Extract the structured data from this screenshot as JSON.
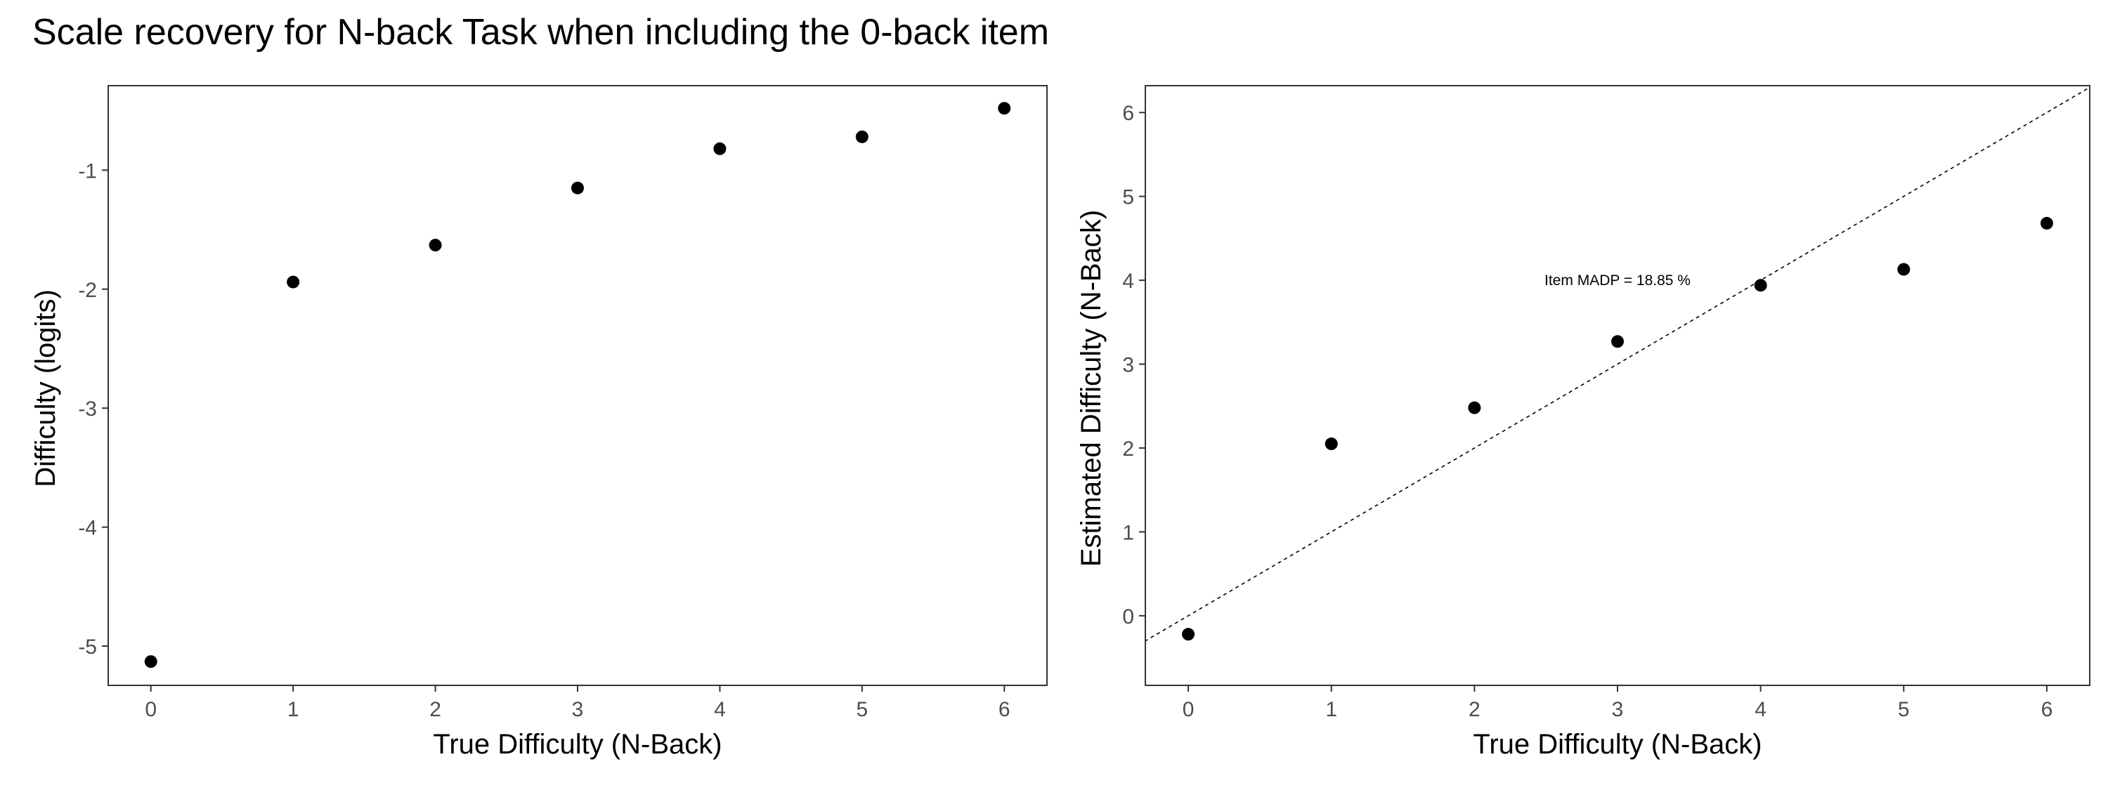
{
  "title": "Scale recovery for N-back Task when including the 0-back item",
  "chart_data": [
    {
      "type": "scatter",
      "xlabel": "True Difficulty (N-Back)",
      "ylabel": "Difficulty (logits)",
      "xlim": [
        -0.3,
        6.3
      ],
      "ylim": [
        -5.33,
        -0.29
      ],
      "xticks": [
        0,
        1,
        2,
        3,
        4,
        5,
        6
      ],
      "yticks": [
        -5,
        -4,
        -3,
        -2,
        -1
      ],
      "grid": false,
      "series": [
        {
          "x": [
            0,
            1,
            2,
            3,
            4,
            5,
            6
          ],
          "y": [
            -5.13,
            -1.94,
            -1.63,
            -1.15,
            -0.82,
            -0.72,
            -0.48
          ]
        }
      ]
    },
    {
      "type": "scatter",
      "xlabel": "True Difficulty (N-Back)",
      "ylabel": "Estimated Difficulty (N-Back)",
      "xlim": [
        -0.3,
        6.3
      ],
      "ylim": [
        -0.83,
        6.32
      ],
      "xticks": [
        0,
        1,
        2,
        3,
        4,
        5,
        6
      ],
      "yticks": [
        0,
        1,
        2,
        3,
        4,
        5,
        6
      ],
      "grid": false,
      "reference_line": {
        "type": "identity",
        "style": "dashed"
      },
      "annotation": {
        "text": "Item MADP =  18.85 %",
        "x": 3.0,
        "y": 4.0
      },
      "series": [
        {
          "x": [
            0,
            1,
            2,
            3,
            4,
            5,
            6
          ],
          "y": [
            -0.22,
            2.05,
            2.48,
            3.27,
            3.94,
            4.13,
            4.68
          ]
        }
      ]
    }
  ]
}
